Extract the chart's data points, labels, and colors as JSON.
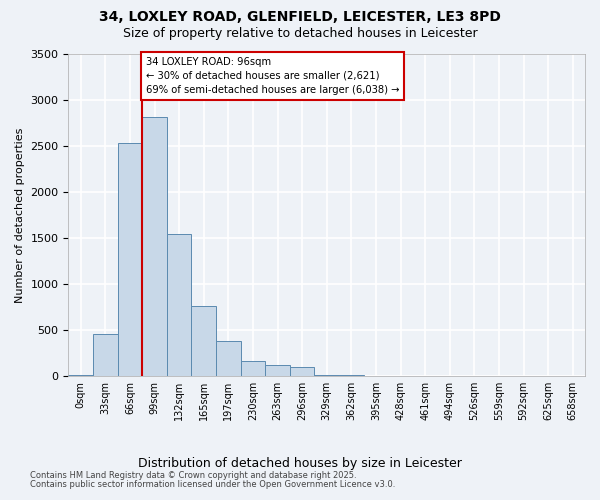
{
  "title_line1": "34, LOXLEY ROAD, GLENFIELD, LEICESTER, LE3 8PD",
  "title_line2": "Size of property relative to detached houses in Leicester",
  "xlabel": "Distribution of detached houses by size in Leicester",
  "ylabel": "Number of detached properties",
  "bin_labels": [
    "0sqm",
    "33sqm",
    "66sqm",
    "99sqm",
    "132sqm",
    "165sqm",
    "197sqm",
    "230sqm",
    "263sqm",
    "296sqm",
    "329sqm",
    "362sqm",
    "395sqm",
    "428sqm",
    "461sqm",
    "494sqm",
    "526sqm",
    "559sqm",
    "592sqm",
    "625sqm",
    "658sqm"
  ],
  "bar_values": [
    5,
    450,
    2530,
    2820,
    1540,
    760,
    380,
    160,
    120,
    90,
    10,
    5,
    0,
    0,
    0,
    0,
    0,
    0,
    0,
    0,
    0
  ],
  "bar_color": "#c8d8e8",
  "bar_edge_color": "#5b8ab0",
  "vline_color": "#cc0000",
  "annotation_text": "34 LOXLEY ROAD: 96sqm\n← 30% of detached houses are smaller (2,621)\n69% of semi-detached houses are larger (6,038) →",
  "annotation_box_color": "#cc0000",
  "background_color": "#eef2f7",
  "grid_color": "#ffffff",
  "ylim": [
    0,
    3500
  ],
  "yticks": [
    0,
    500,
    1000,
    1500,
    2000,
    2500,
    3000,
    3500
  ],
  "footnote1": "Contains HM Land Registry data © Crown copyright and database right 2025.",
  "footnote2": "Contains public sector information licensed under the Open Government Licence v3.0."
}
